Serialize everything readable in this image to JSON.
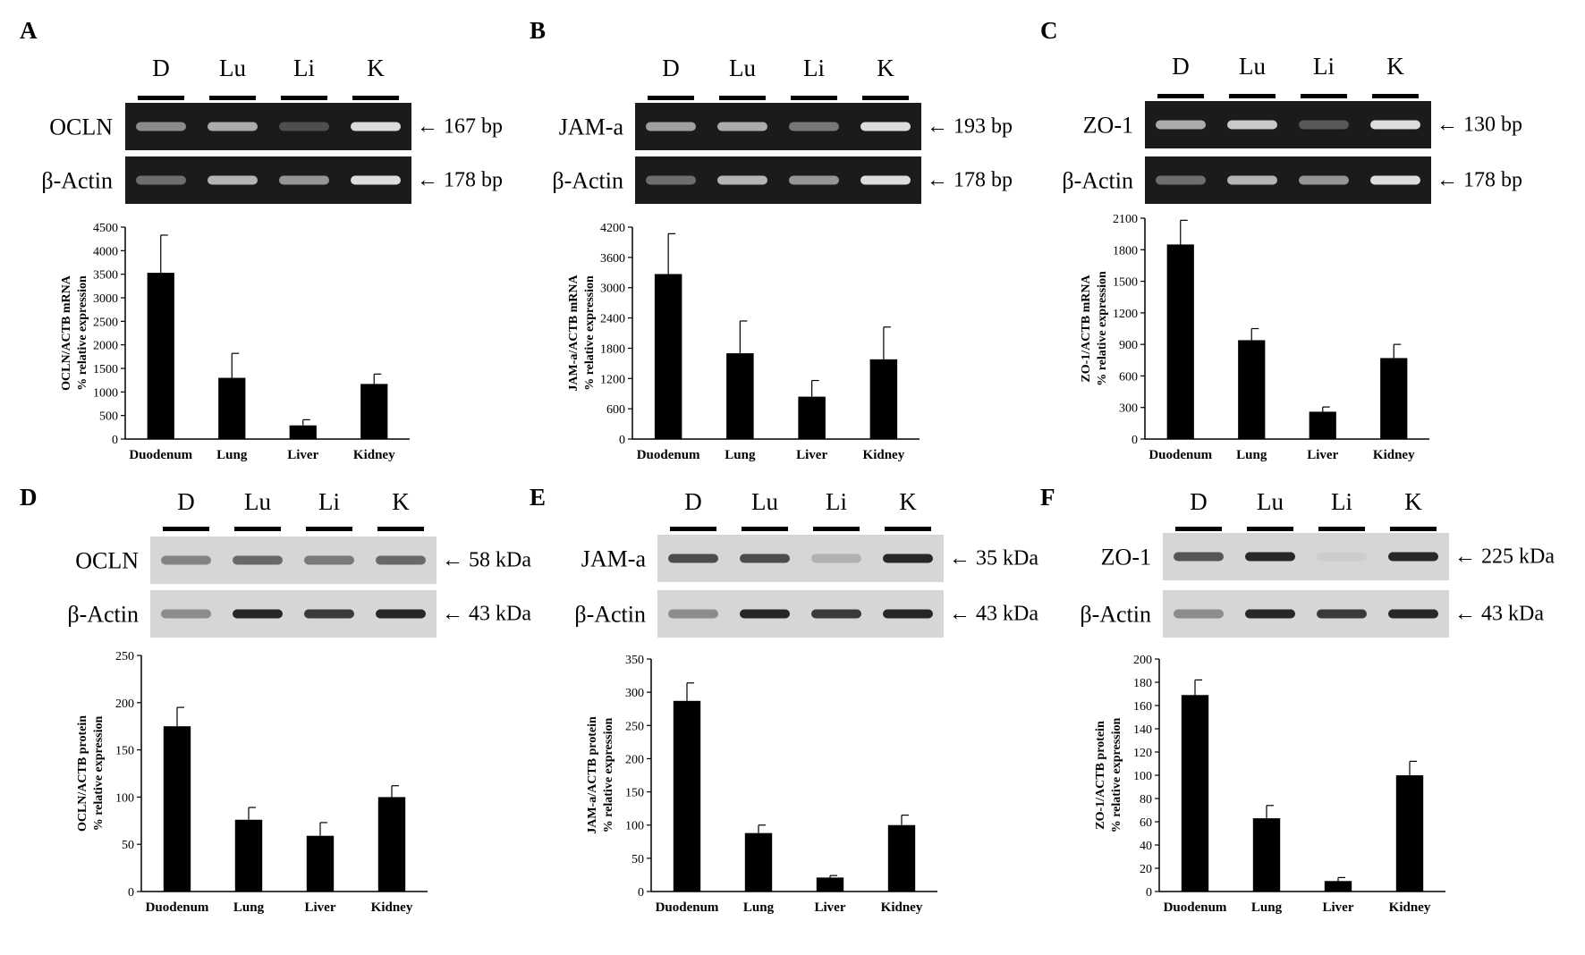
{
  "colors": {
    "bar": "#000000",
    "gel_bg": "#1b1b1b",
    "gel_band": "#e8e8e8",
    "blot_bg": "#d6d6d6",
    "blot_band": "#1e1e1e"
  },
  "panels": [
    {
      "letter": "A",
      "kind": "gel",
      "lanes": [
        "D",
        "Lu",
        "Li",
        "K"
      ],
      "rows": [
        {
          "label": "OCLN",
          "size": "← 167 bp",
          "intensity": [
            0.55,
            0.7,
            0.25,
            0.95
          ]
        },
        {
          "label": "β-Actin",
          "size": "← 178 bp",
          "intensity": [
            0.4,
            0.75,
            0.6,
            0.95
          ]
        }
      ],
      "ylabel1": "OCLN/ACTB mRNA",
      "ylabel2": "% relative expression"
    },
    {
      "letter": "B",
      "kind": "gel",
      "lanes": [
        "D",
        "Lu",
        "Li",
        "K"
      ],
      "rows": [
        {
          "label": "JAM-a",
          "size": "← 193 bp",
          "intensity": [
            0.65,
            0.7,
            0.45,
            0.95
          ]
        },
        {
          "label": "β-Actin",
          "size": "← 178 bp",
          "intensity": [
            0.4,
            0.75,
            0.6,
            0.95
          ]
        }
      ],
      "ylabel1": "JAM-a/ACTB mRNA",
      "ylabel2": "% relative expression"
    },
    {
      "letter": "C",
      "kind": "gel",
      "lanes": [
        "D",
        "Lu",
        "Li",
        "K"
      ],
      "rows": [
        {
          "label": "ZO-1",
          "size": "← 130 bp",
          "intensity": [
            0.7,
            0.85,
            0.3,
            0.95
          ]
        },
        {
          "label": "β-Actin",
          "size": "← 178 bp",
          "intensity": [
            0.4,
            0.75,
            0.6,
            0.95
          ]
        }
      ],
      "ylabel1": "ZO-1/ACTB mRNA",
      "ylabel2": "% relative expression"
    },
    {
      "letter": "D",
      "kind": "blot",
      "lanes": [
        "D",
        "Lu",
        "Li",
        "K"
      ],
      "rows": [
        {
          "label": "OCLN",
          "size": "← 58 kDa",
          "intensity": [
            0.45,
            0.6,
            0.5,
            0.6
          ]
        },
        {
          "label": "β-Actin",
          "size": "← 43 kDa",
          "intensity": [
            0.4,
            0.95,
            0.85,
            0.95
          ]
        }
      ],
      "ylabel1": "OCLN/ACTB protein",
      "ylabel2": "% relative expression"
    },
    {
      "letter": "E",
      "kind": "blot",
      "lanes": [
        "D",
        "Lu",
        "Li",
        "K"
      ],
      "rows": [
        {
          "label": "JAM-a",
          "size": "← 35 kDa",
          "intensity": [
            0.75,
            0.75,
            0.2,
            0.95
          ]
        },
        {
          "label": "β-Actin",
          "size": "← 43 kDa",
          "intensity": [
            0.4,
            0.95,
            0.85,
            0.95
          ]
        }
      ],
      "ylabel1": "JAM-a/ACTB protein",
      "ylabel2": "% relative expression"
    },
    {
      "letter": "F",
      "kind": "blot",
      "lanes": [
        "D",
        "Lu",
        "Li",
        "K"
      ],
      "rows": [
        {
          "label": "ZO-1",
          "size": "← 225 kDa",
          "intensity": [
            0.7,
            0.95,
            0.05,
            0.95
          ]
        },
        {
          "label": "β-Actin",
          "size": "← 43 kDa",
          "intensity": [
            0.4,
            0.95,
            0.85,
            0.95
          ]
        }
      ],
      "ylabel1": "ZO-1/ACTB protein",
      "ylabel2": "% relative expression"
    }
  ],
  "chart_data": [
    {
      "panel": "A",
      "type": "bar",
      "categories": [
        "Duodenum",
        "Lung",
        "Liver",
        "Kidney"
      ],
      "values": [
        3530,
        1300,
        290,
        1170
      ],
      "errors": [
        800,
        520,
        120,
        210
      ],
      "ylim": [
        0,
        4500
      ],
      "yticks": [
        0,
        500,
        1000,
        1500,
        2000,
        2500,
        3000,
        3500,
        4000,
        4500
      ],
      "ylabel": "OCLN/ACTB mRNA % relative expression"
    },
    {
      "panel": "B",
      "type": "bar",
      "categories": [
        "Duodenum",
        "Lung",
        "Liver",
        "Kidney"
      ],
      "values": [
        3270,
        1700,
        840,
        1580
      ],
      "errors": [
        800,
        640,
        320,
        640
      ],
      "ylim": [
        0,
        4200
      ],
      "yticks": [
        0,
        600,
        1200,
        1800,
        2400,
        3000,
        3600,
        4200
      ],
      "ylabel": "JAM-a/ACTB mRNA % relative expression"
    },
    {
      "panel": "C",
      "type": "bar",
      "categories": [
        "Duodenum",
        "Lung",
        "Liver",
        "Kidney"
      ],
      "values": [
        1850,
        940,
        260,
        770
      ],
      "errors": [
        230,
        110,
        45,
        130
      ],
      "ylim": [
        0,
        2100
      ],
      "yticks": [
        0,
        300,
        600,
        900,
        1200,
        1500,
        1800,
        2100
      ],
      "ylabel": "ZO-1/ACTB mRNA % relative expression"
    },
    {
      "panel": "D",
      "type": "bar",
      "categories": [
        "Duodenum",
        "Lung",
        "Liver",
        "Kidney"
      ],
      "values": [
        175,
        76,
        59,
        100
      ],
      "errors": [
        20,
        13,
        14,
        12
      ],
      "ylim": [
        0,
        250
      ],
      "yticks": [
        0,
        50,
        100,
        150,
        200,
        250
      ],
      "ylabel": "OCLN/ACTB protein % relative expression"
    },
    {
      "panel": "E",
      "type": "bar",
      "categories": [
        "Duodenum",
        "Lung",
        "Liver",
        "Kidney"
      ],
      "values": [
        287,
        88,
        21,
        100
      ],
      "errors": [
        27,
        12,
        3,
        15
      ],
      "ylim": [
        0,
        350
      ],
      "yticks": [
        0,
        50,
        100,
        150,
        200,
        250,
        300,
        350
      ],
      "ylabel": "JAM-a/ACTB protein % relative expression"
    },
    {
      "panel": "F",
      "type": "bar",
      "categories": [
        "Duodenum",
        "Lung",
        "Liver",
        "Kidney"
      ],
      "values": [
        169,
        63,
        9,
        100
      ],
      "errors": [
        13,
        11,
        3,
        12
      ],
      "ylim": [
        0,
        200
      ],
      "yticks": [
        0,
        20,
        40,
        60,
        80,
        100,
        120,
        140,
        160,
        180,
        200
      ],
      "ylabel": "ZO-1/ACTB protein % relative expression"
    }
  ]
}
